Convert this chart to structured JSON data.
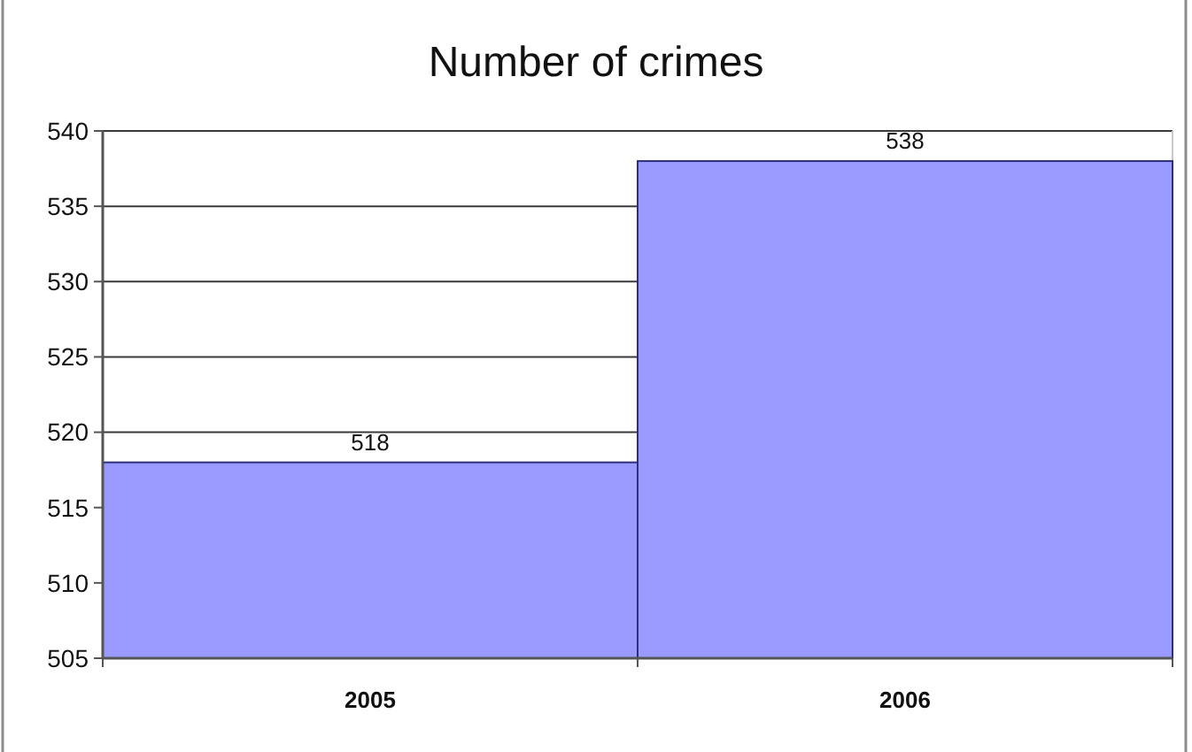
{
  "chart_data": {
    "type": "bar",
    "title": "Number of crimes",
    "categories": [
      "2005",
      "2006"
    ],
    "values": [
      518,
      538
    ],
    "color": "#9999ff",
    "ylim": [
      505,
      540
    ],
    "yticks": [
      505,
      510,
      515,
      520,
      525,
      530,
      535,
      540
    ],
    "grid": "y",
    "data_labels": true
  }
}
